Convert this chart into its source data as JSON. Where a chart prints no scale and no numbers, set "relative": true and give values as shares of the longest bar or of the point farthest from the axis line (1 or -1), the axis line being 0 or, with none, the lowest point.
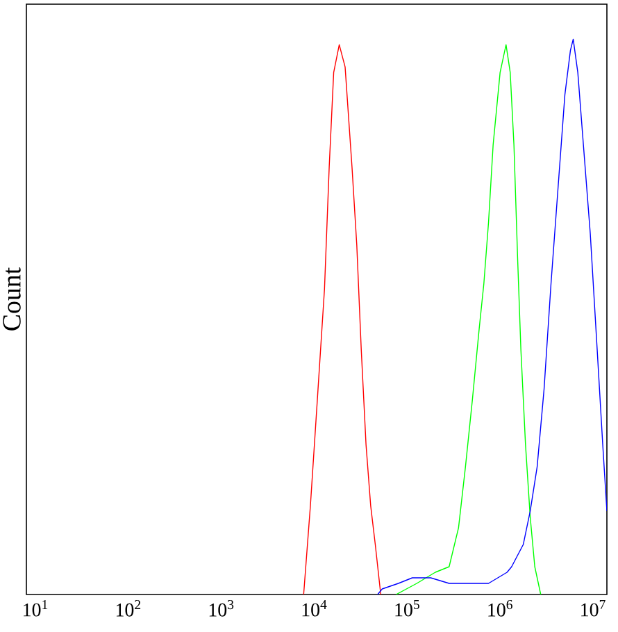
{
  "chart_data": {
    "type": "line",
    "ylabel": "Count",
    "relative": true,
    "log": "x",
    "xlim": [
      8,
      14100000
    ],
    "xticks": [
      {
        "value": 10,
        "label": "10$^{1}$"
      },
      {
        "value": 100,
        "label": "10$^{2}$"
      },
      {
        "value": 1000,
        "label": "10$^{3}$"
      },
      {
        "value": 10000,
        "label": "10$^{4}$"
      },
      {
        "value": 100000,
        "label": "10$^{5}$"
      },
      {
        "value": 1000000,
        "label": "10$^{6}$"
      },
      {
        "value": 10000000,
        "label": "10$^{7}$"
      }
    ],
    "series": [
      {
        "color": "#ff0000",
        "x": [
          7700,
          9100,
          10800,
          12900,
          14500,
          16200,
          18600,
          21500,
          25500,
          28700,
          32100,
          36100,
          40500,
          45400,
          52000
        ],
        "values": [
          0,
          0.16,
          0.35,
          0.55,
          0.77,
          0.94,
          0.99,
          0.95,
          0.77,
          0.63,
          0.44,
          0.27,
          0.16,
          0.09,
          0
        ]
      },
      {
        "color": "#00ff00",
        "x": [
          76000,
          127000,
          201000,
          283000,
          357000,
          424000,
          503000,
          597000,
          669000,
          751000,
          842000,
          1000000,
          1159000,
          1285000,
          1409000,
          1548000,
          1675000,
          1877000,
          2108000,
          2362000,
          2737000
        ],
        "values": [
          0,
          0.02,
          0.04,
          0.05,
          0.12,
          0.23,
          0.35,
          0.48,
          0.56,
          0.67,
          0.81,
          0.94,
          0.99,
          0.94,
          0.81,
          0.6,
          0.44,
          0.27,
          0.14,
          0.05,
          0
        ]
      },
      {
        "color": "#0000ff",
        "x": [
          48100,
          53900,
          80500,
          113500,
          179400,
          283000,
          503000,
          751000,
          1189000,
          1331000,
          1776000,
          2108000,
          2505000,
          2974000,
          3532000,
          4194000,
          4980000,
          5714000,
          6122000,
          6859000,
          7874000,
          9340000,
          11090000,
          12720000,
          14100000
        ],
        "values": [
          0,
          0.01,
          0.02,
          0.03,
          0.03,
          0.02,
          0.02,
          0.02,
          0.04,
          0.05,
          0.09,
          0.15,
          0.23,
          0.37,
          0.56,
          0.73,
          0.9,
          0.98,
          1.0,
          0.94,
          0.81,
          0.65,
          0.44,
          0.27,
          0.15
        ]
      }
    ]
  }
}
